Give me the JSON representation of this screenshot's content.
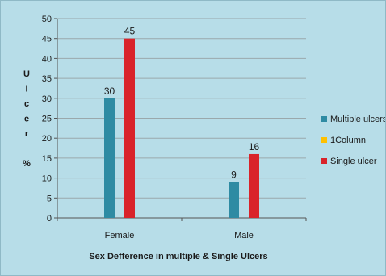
{
  "chart_data": {
    "type": "bar",
    "categories": [
      "Female",
      "Male"
    ],
    "series": [
      {
        "name": "Multiple ulcers",
        "values": [
          30,
          9
        ],
        "color": "#2e8ba3"
      },
      {
        "name": "1Column",
        "values": [
          null,
          null
        ],
        "color": "#ffc000"
      },
      {
        "name": "Single ulcer",
        "values": [
          45,
          16
        ],
        "color": "#d9232a"
      }
    ],
    "xlabel": "Sex Defference in multiple & Single Ulcers",
    "ylabel_chars": [
      "U",
      "l",
      "c",
      "e",
      "r",
      "",
      "%"
    ],
    "ylim": [
      0,
      50
    ],
    "yticks": [
      0,
      5,
      10,
      15,
      20,
      25,
      30,
      35,
      40,
      45,
      50
    ],
    "data_labels": [
      {
        "category": "Female",
        "series": "Multiple ulcers",
        "text": "30"
      },
      {
        "category": "Female",
        "series": "Single ulcer",
        "text": "45"
      },
      {
        "category": "Male",
        "series": "Multiple ulcers",
        "text": "9"
      },
      {
        "category": "Male",
        "series": "Single ulcer",
        "text": "16"
      }
    ],
    "grid": true,
    "legend_position": "right",
    "background_color": "#b7dde8",
    "gridline_color": "#9aa8ac"
  }
}
